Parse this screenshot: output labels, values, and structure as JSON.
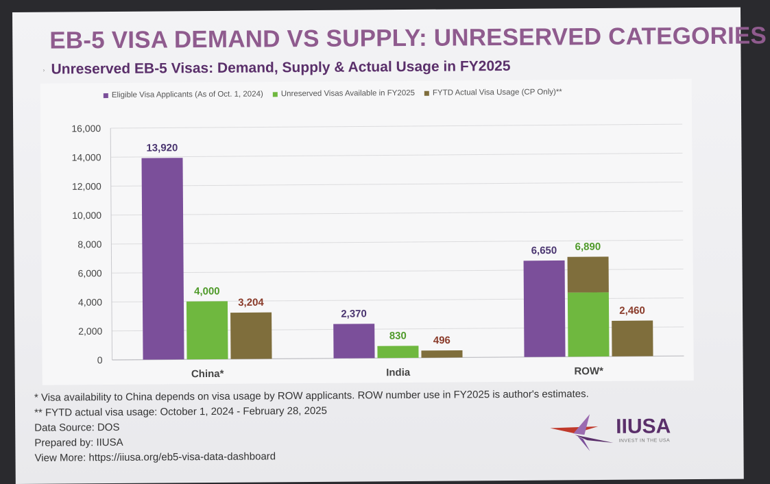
{
  "slide": {
    "title": "EB-5 VISA DEMAND VS SUPPLY: UNRESERVED CATEGORIES"
  },
  "notes": {
    "footnote1": "* Visa availability to China depends on visa usage by ROW applicants. ROW number use in FY2025 is author's estimates.",
    "footnote2": "** FYTD actual visa usage: October 1, 2024 - February 28, 2025",
    "source": "Data Source: DOS",
    "prepared": "Prepared by: IIUSA",
    "view_more": "View More: https://iiusa.org/eb5-visa-data-dashboard"
  },
  "logo": {
    "name": "IIUSA",
    "tagline": "INVEST IN THE USA",
    "colors": {
      "purple": "#5a2f6a",
      "red": "#c0392b",
      "violet": "#9b6bb0"
    }
  },
  "chart_data": {
    "type": "bar",
    "title": "Unreserved EB-5 Visas: Demand, Supply & Actual Usage in FY2025",
    "categories": [
      "China*",
      "India",
      "ROW*"
    ],
    "series": [
      {
        "name": "Eligible Visa Applicants (As of Oct. 1, 2024)",
        "color": "#7b4f9a",
        "values": [
          13920,
          2370,
          6650
        ],
        "labels": [
          "13,920",
          "2,370",
          "6,650"
        ],
        "label_color": "#4a3570"
      },
      {
        "name": "Unreserved Visas Available in FY2025",
        "color": "#6fb83f",
        "values": [
          4000,
          830,
          6890
        ],
        "labels": [
          "4,000",
          "830",
          "6,890"
        ],
        "label_color": "#4f9a2a"
      },
      {
        "name": "FYTD Actual Visa Usage (CP Only)**",
        "color": "#7f6e3c",
        "values": [
          3204,
          496,
          2460
        ],
        "labels": [
          "3,204",
          "496",
          "2,460"
        ],
        "label_color": "#8a3b2a"
      }
    ],
    "row_available_split": {
      "usage_portion": 2460
    },
    "ylim": [
      0,
      16000
    ],
    "yticks": [
      "0",
      "2,000",
      "4,000",
      "6,000",
      "8,000",
      "10,000",
      "12,000",
      "14,000",
      "16,000"
    ],
    "ytick_values": [
      0,
      2000,
      4000,
      6000,
      8000,
      10000,
      12000,
      14000,
      16000
    ],
    "grid": true,
    "legend_position": "top"
  }
}
